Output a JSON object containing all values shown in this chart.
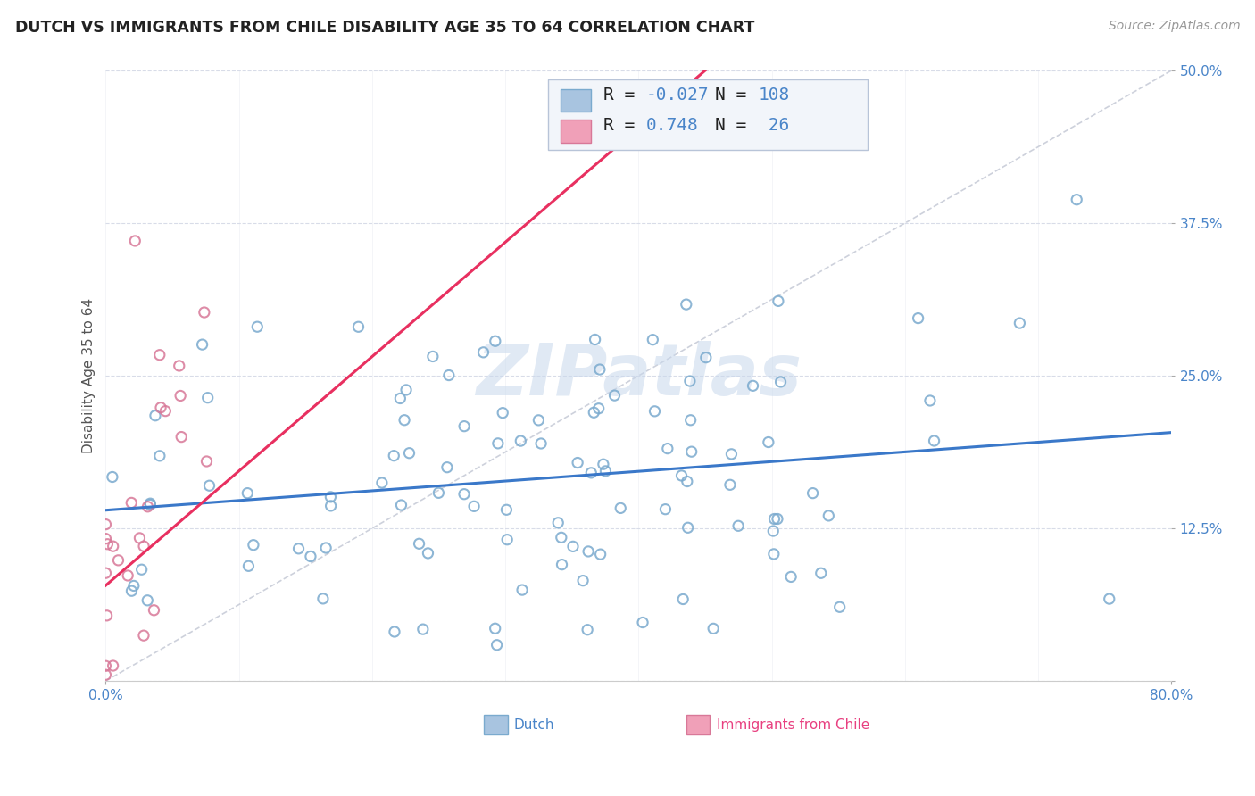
{
  "title": "DUTCH VS IMMIGRANTS FROM CHILE DISABILITY AGE 35 TO 64 CORRELATION CHART",
  "source": "Source: ZipAtlas.com",
  "xlabel_dutch": "Dutch",
  "xlabel_chile": "Immigrants from Chile",
  "ylabel": "Disability Age 35 to 64",
  "watermark": "ZIPatlas",
  "xlim": [
    0.0,
    0.8
  ],
  "ylim": [
    0.0,
    0.5
  ],
  "xticks": [
    0.0,
    0.1,
    0.2,
    0.3,
    0.4,
    0.5,
    0.6,
    0.7,
    0.8
  ],
  "ytick_positions": [
    0.0,
    0.125,
    0.25,
    0.375,
    0.5
  ],
  "ytick_labels": [
    "",
    "12.5%",
    "25.0%",
    "37.5%",
    "50.0%"
  ],
  "dutch_color": "#a8c4e0",
  "dutch_edge_color": "#7aaace",
  "chile_color": "#f0a0b8",
  "chile_edge_color": "#d87898",
  "dutch_line_color": "#3a78c9",
  "chile_line_color": "#e83060",
  "ref_line_color": "#c8ccd8",
  "grid_color": "#d8dce8",
  "R_dutch": -0.027,
  "N_dutch": 108,
  "R_chile": 0.748,
  "N_chile": 26,
  "background_color": "#ffffff",
  "title_fontsize": 12.5,
  "source_fontsize": 10,
  "axis_label_fontsize": 11,
  "tick_fontsize": 11,
  "legend_fontsize": 14,
  "watermark_fontsize": 58
}
